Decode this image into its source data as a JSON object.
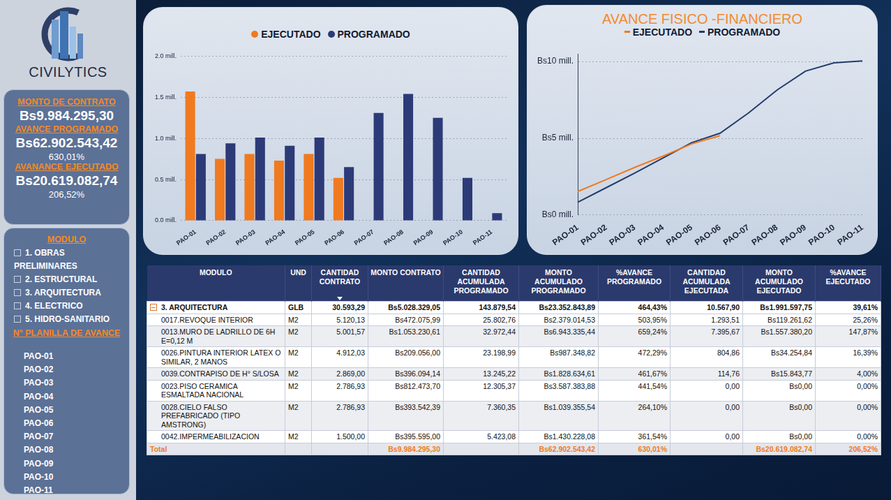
{
  "logo_text": "CIVILYTICS",
  "kpis": [
    {
      "label": "MONTO DE CONTRATO",
      "value": "Bs9.984.295,30"
    },
    {
      "label": "AVANCE PROGRAMADO",
      "value": "Bs62.902.543,42",
      "percent": "630,01%"
    },
    {
      "label": "AVANANCE EJECUTADO",
      "value": "Bs20.619.082,74",
      "percent": "206,52%"
    }
  ],
  "filters": [
    {
      "title": "MODULO",
      "items": [
        "1. OBRAS PRELIMINARES",
        "2. ESTRUCTURAL",
        "3. ARQUITECTURA",
        "4. ELECTRICO",
        "5. HIDRO-SANITARIO"
      ]
    },
    {
      "title": "N° PLANILLA DE AVANCE",
      "items": [
        "PAO-01",
        "PAO-02",
        "PAO-03",
        "PAO-04",
        "PAO-05",
        "PAO-06",
        "PAO-07",
        "PAO-08",
        "PAO-09",
        "PAO-10",
        "PAO-11"
      ]
    }
  ],
  "chart_data": [
    {
      "type": "bar",
      "categories": [
        "PAO-01",
        "PAO-02",
        "PAO-03",
        "PAO-04",
        "PAO-05",
        "PAO-06",
        "PAO-07",
        "PAO-08",
        "PAO-09",
        "PAO-10",
        "PAO-11"
      ],
      "series": [
        {
          "name": "EJECUTADO",
          "color": "#f07a1f",
          "values": [
            1.57,
            0.75,
            0.81,
            0.73,
            0.81,
            0.52,
            null,
            null,
            null,
            null,
            null
          ]
        },
        {
          "name": "PROGRAMADO",
          "color": "#2c3a78",
          "values": [
            0.81,
            0.94,
            1.01,
            0.91,
            1.01,
            0.65,
            1.31,
            1.54,
            1.25,
            0.52,
            0.09
          ]
        }
      ],
      "ylim": [
        0,
        2
      ],
      "yticks": [
        {
          "value": 0,
          "label": "0.0 mill."
        },
        {
          "value": 0.5,
          "label": "0.5 mill."
        },
        {
          "value": 1,
          "label": "1.0 mill."
        },
        {
          "value": 1.5,
          "label": "1.5 mill."
        },
        {
          "value": 2,
          "label": "2.0 mill."
        }
      ],
      "grid": true,
      "legend": "top"
    },
    {
      "type": "line",
      "title": "AVANCE FISICO -FINANCIERO",
      "categories": [
        "PAO-01",
        "PAO-02",
        "PAO-03",
        "PAO-04",
        "PAO-05",
        "PAO-06",
        "PAO-07",
        "PAO-08",
        "PAO-09",
        "PAO-10",
        "PAO-11"
      ],
      "series": [
        {
          "name": "EJECUTADO",
          "color": "#f07a1f",
          "values": [
            1.53,
            2.31,
            3.1,
            3.84,
            4.63,
            5.17,
            null,
            null,
            null,
            null,
            null
          ]
        },
        {
          "name": "PROGRAMADO",
          "color": "#243b6b",
          "values": [
            0.83,
            1.78,
            2.73,
            3.72,
            4.71,
            5.33,
            6.65,
            8.14,
            9.38,
            9.92,
            10.04
          ]
        }
      ],
      "ylim": [
        0,
        10.5
      ],
      "yticks": [
        {
          "value": 0,
          "label": "Bs0 mill."
        },
        {
          "value": 5,
          "label": "Bs5 mill."
        },
        {
          "value": 10,
          "label": "Bs10 mill."
        }
      ],
      "grid": true,
      "legend": "top"
    }
  ],
  "table": {
    "columns": [
      "MODULO",
      "UND",
      "CANTIDAD CONTRATO",
      "MONTO CONTRATO",
      "CANTIDAD ACUMULADA PROGRAMADO",
      "MONTO ACUMULADO PROGRAMADO",
      "%AVANCE PROGRAMADO",
      "CANTIDAD ACUMULADA EJECUTADA",
      "MONTO ACUMULADO EJECUTADO",
      "%AVANCE EJECUTADO"
    ],
    "group_row": [
      "3. ARQUITECTURA",
      "GLB",
      "30.593,29",
      "Bs5.028.329,05",
      "143.879,54",
      "Bs23.352.843,89",
      "464,43%",
      "10.567,90",
      "Bs1.991.597,75",
      "39,61%"
    ],
    "rows": [
      [
        "0017.REVOQUE INTERIOR",
        "M2",
        "5.120,13",
        "Bs472.075,99",
        "25.802,76",
        "Bs2.379.014,53",
        "503,95%",
        "1.293,51",
        "Bs119.261,62",
        "25,26%"
      ],
      [
        "0013.MURO DE LADRILLO DE 6H E=0,12 M",
        "M2",
        "5.001,57",
        "Bs1.053.230,61",
        "32.972,44",
        "Bs6.943.335,44",
        "659,24%",
        "7.395,67",
        "Bs1.557.380,20",
        "147,87%"
      ],
      [
        "0026.PINTURA INTERIOR LATEX O SIMILAR, 2 MANOS",
        "M2",
        "4.912,03",
        "Bs209.056,00",
        "23.198,99",
        "Bs987.348,82",
        "472,29%",
        "804,86",
        "Bs34.254,84",
        "16,39%"
      ],
      [
        "0039.CONTRAPISO DE H° S/LOSA",
        "M2",
        "2.869,00",
        "Bs396.094,14",
        "13.245,22",
        "Bs1.828.634,61",
        "461,67%",
        "114,76",
        "Bs15.843,77",
        "4,00%"
      ],
      [
        "0023.PISO CERAMICA ESMALTADA NACIONAL",
        "M2",
        "2.786,93",
        "Bs812.473,70",
        "12.305,37",
        "Bs3.587.383,88",
        "441,54%",
        "0,00",
        "Bs0,00",
        "0,00%"
      ],
      [
        "0028.CIELO FALSO PREFABRICADO (TIPO AMSTRONG)",
        "M2",
        "2.786,93",
        "Bs393.542,39",
        "7.360,35",
        "Bs1.039.355,54",
        "264,10%",
        "0,00",
        "Bs0,00",
        "0,00%"
      ],
      [
        "0042.IMPERMEABILIZACION",
        "M2",
        "1.500,00",
        "Bs395.595,00",
        "5.423,08",
        "Bs1.430.228,08",
        "361,54%",
        "0,00",
        "Bs0,00",
        "0,00%"
      ]
    ],
    "total_row": [
      "Total",
      null,
      null,
      "Bs9.984.295,30",
      null,
      "Bs62.902.543,42",
      "630,01%",
      null,
      "Bs20.619.082,74",
      "206,52%"
    ]
  }
}
